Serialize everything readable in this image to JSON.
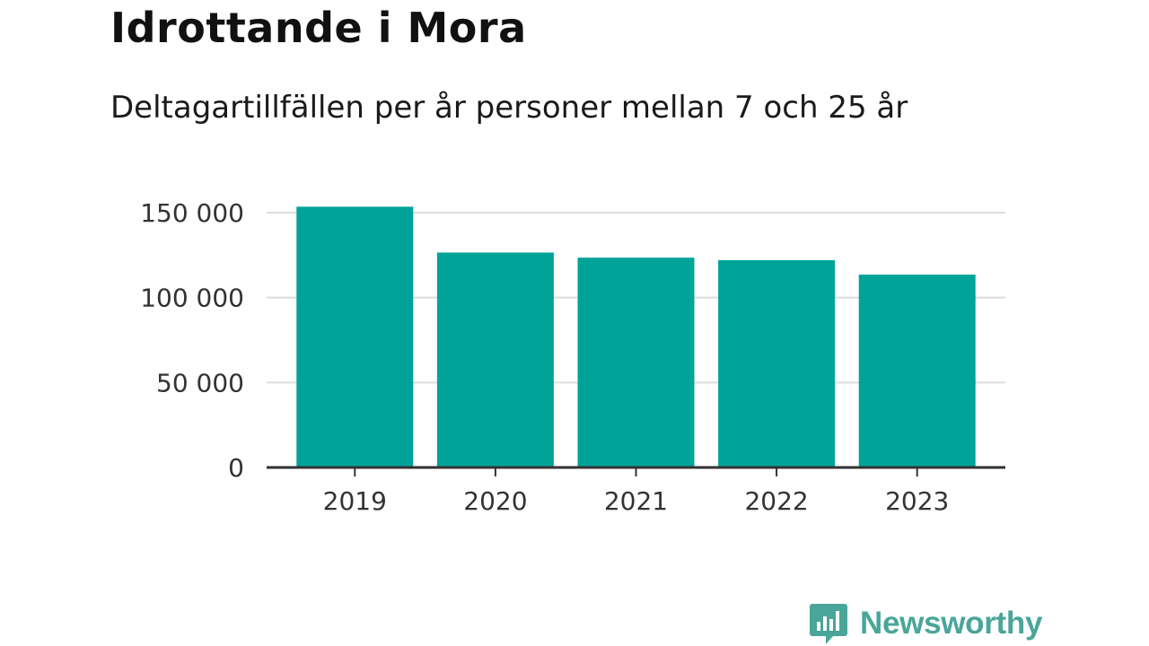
{
  "title": "Idrottande i Mora",
  "subtitle": "Deltagartillfällen per år personer mellan 7 och 25 år",
  "brand": {
    "name": "Newsworthy",
    "icon": "bar-chart-speech-bubble-icon",
    "color": "#4aa59a"
  },
  "chart_data": {
    "type": "bar",
    "categories": [
      "2019",
      "2020",
      "2021",
      "2022",
      "2023"
    ],
    "values": [
      153500,
      126500,
      123500,
      122000,
      113500
    ],
    "ylim": [
      0,
      150000
    ],
    "yticks": [
      0,
      50000,
      100000,
      150000
    ],
    "ytick_labels": [
      "0",
      "50 000",
      "100 000",
      "150 000"
    ],
    "grid": true,
    "bar_color": "#00a398",
    "grid_color": "#dddddd",
    "axis_color": "#333333"
  }
}
